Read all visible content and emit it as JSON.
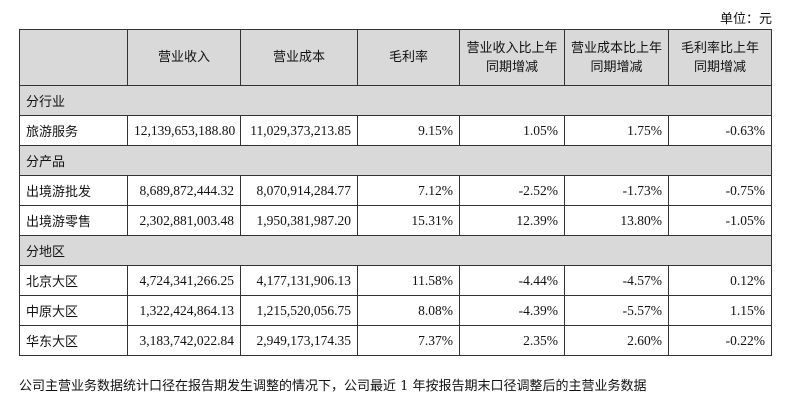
{
  "unit": "单位：元",
  "headers": [
    "",
    "营业收入",
    "营业成本",
    "毛利率",
    "营业收入比上年同期增减",
    "营业成本比上年同期增减",
    "毛利率比上年同期增减"
  ],
  "sections": [
    {
      "title": "分行业",
      "rows": [
        [
          "旅游服务",
          "12,139,653,188.80",
          "11,029,373,213.85",
          "9.15%",
          "1.05%",
          "1.75%",
          "-0.63%"
        ]
      ]
    },
    {
      "title": "分产品",
      "rows": [
        [
          "出境游批发",
          "8,689,872,444.32",
          "8,070,914,284.77",
          "7.12%",
          "-2.52%",
          "-1.73%",
          "-0.75%"
        ],
        [
          "出境游零售",
          "2,302,881,003.48",
          "1,950,381,987.20",
          "15.31%",
          "12.39%",
          "13.80%",
          "-1.05%"
        ]
      ]
    },
    {
      "title": "分地区",
      "rows": [
        [
          "北京大区",
          "4,724,341,266.25",
          "4,177,131,906.13",
          "11.58%",
          "-4.44%",
          "-4.57%",
          "0.12%"
        ],
        [
          "中原大区",
          "1,322,424,864.13",
          "1,215,520,056.75",
          "8.08%",
          "-4.39%",
          "-5.57%",
          "1.15%"
        ],
        [
          "华东大区",
          "3,183,742,022.84",
          "2,949,173,174.35",
          "7.37%",
          "2.35%",
          "2.60%",
          "-0.22%"
        ]
      ]
    }
  ],
  "note": "公司主营业务数据统计口径在报告期发生调整的情况下，公司最近 1 年按报告期末口径调整后的主营业务数据"
}
